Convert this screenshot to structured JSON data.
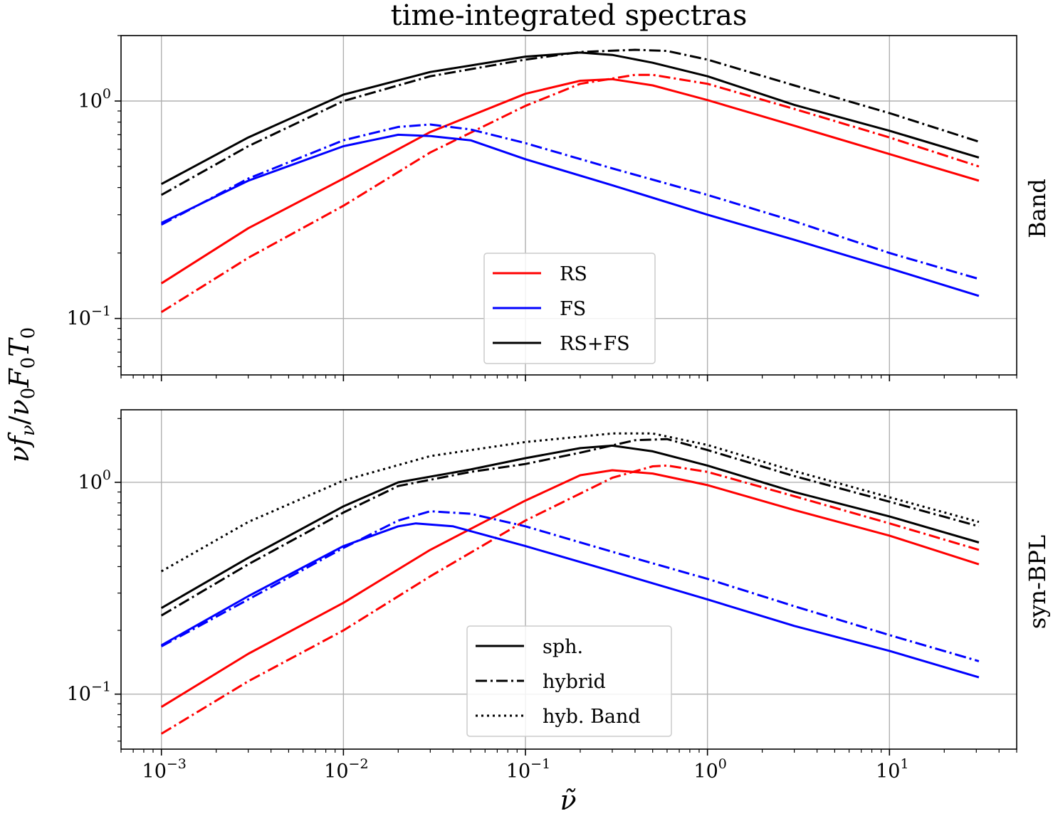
{
  "chart_data": {
    "type": "line",
    "title": "time-integrated spectras",
    "xlabel": "ν̃",
    "ylabel": "νf_ν/ν₀F₀T₀",
    "xscale": "log",
    "yscale": "log",
    "xlim": [
      0.0006,
      50
    ],
    "grid": true,
    "x_ticks": [
      {
        "base": "10",
        "exp": "−3",
        "value": 0.001
      },
      {
        "base": "10",
        "exp": "−2",
        "value": 0.01
      },
      {
        "base": "10",
        "exp": "−1",
        "value": 0.1
      },
      {
        "base": "10",
        "exp": "0",
        "value": 1
      },
      {
        "base": "10",
        "exp": "1",
        "value": 10
      }
    ],
    "panels": [
      {
        "label": "Band",
        "ylim": [
          0.055,
          2.0
        ],
        "y_ticks": [
          {
            "base": "10",
            "exp": "0",
            "value": 1
          },
          {
            "base": "10",
            "exp": "−1",
            "value": 0.1
          }
        ],
        "legend": {
          "placement": "lower-center",
          "entries": [
            {
              "label": "RS",
              "color": "#ff0000",
              "style": "solid"
            },
            {
              "label": "FS",
              "color": "#0000ff",
              "style": "solid"
            },
            {
              "label": "RS+FS",
              "color": "#000000",
              "style": "solid"
            }
          ]
        },
        "series": [
          {
            "name": "RS sph.",
            "color": "#ff0000",
            "style": "solid",
            "points": [
              [
                0.001,
                0.145
              ],
              [
                0.003,
                0.26
              ],
              [
                0.01,
                0.44
              ],
              [
                0.03,
                0.72
              ],
              [
                0.1,
                1.08
              ],
              [
                0.2,
                1.24
              ],
              [
                0.3,
                1.26
              ],
              [
                0.5,
                1.18
              ],
              [
                1,
                1.01
              ],
              [
                3,
                0.77
              ],
              [
                10,
                0.57
              ],
              [
                31,
                0.43
              ]
            ]
          },
          {
            "name": "RS hybrid",
            "color": "#ff0000",
            "style": "dashdot",
            "points": [
              [
                0.001,
                0.107
              ],
              [
                0.003,
                0.19
              ],
              [
                0.01,
                0.33
              ],
              [
                0.03,
                0.58
              ],
              [
                0.1,
                0.95
              ],
              [
                0.2,
                1.2
              ],
              [
                0.4,
                1.32
              ],
              [
                0.5,
                1.32
              ],
              [
                1,
                1.2
              ],
              [
                3,
                0.92
              ],
              [
                10,
                0.68
              ],
              [
                31,
                0.5
              ]
            ]
          },
          {
            "name": "FS sph.",
            "color": "#0000ff",
            "style": "solid",
            "points": [
              [
                0.001,
                0.275
              ],
              [
                0.003,
                0.43
              ],
              [
                0.01,
                0.62
              ],
              [
                0.02,
                0.7
              ],
              [
                0.03,
                0.69
              ],
              [
                0.05,
                0.66
              ],
              [
                0.1,
                0.54
              ],
              [
                0.3,
                0.41
              ],
              [
                1,
                0.3
              ],
              [
                3,
                0.23
              ],
              [
                10,
                0.17
              ],
              [
                31,
                0.127
              ]
            ]
          },
          {
            "name": "FS hybrid",
            "color": "#0000ff",
            "style": "dashdot",
            "points": [
              [
                0.001,
                0.27
              ],
              [
                0.003,
                0.44
              ],
              [
                0.01,
                0.66
              ],
              [
                0.02,
                0.76
              ],
              [
                0.03,
                0.78
              ],
              [
                0.05,
                0.74
              ],
              [
                0.1,
                0.64
              ],
              [
                0.3,
                0.49
              ],
              [
                1,
                0.37
              ],
              [
                3,
                0.28
              ],
              [
                10,
                0.2
              ],
              [
                31,
                0.152
              ]
            ]
          },
          {
            "name": "RS+FS sph.",
            "color": "#000000",
            "style": "solid",
            "points": [
              [
                0.001,
                0.415
              ],
              [
                0.003,
                0.68
              ],
              [
                0.01,
                1.07
              ],
              [
                0.03,
                1.36
              ],
              [
                0.1,
                1.6
              ],
              [
                0.2,
                1.67
              ],
              [
                0.3,
                1.63
              ],
              [
                0.5,
                1.5
              ],
              [
                1,
                1.3
              ],
              [
                3,
                0.96
              ],
              [
                10,
                0.73
              ],
              [
                31,
                0.55
              ]
            ]
          },
          {
            "name": "RS+FS hybrid",
            "color": "#000000",
            "style": "dashdot",
            "points": [
              [
                0.001,
                0.37
              ],
              [
                0.003,
                0.62
              ],
              [
                0.01,
                1.0
              ],
              [
                0.03,
                1.3
              ],
              [
                0.1,
                1.55
              ],
              [
                0.2,
                1.68
              ],
              [
                0.4,
                1.72
              ],
              [
                0.6,
                1.7
              ],
              [
                1,
                1.55
              ],
              [
                3,
                1.18
              ],
              [
                10,
                0.88
              ],
              [
                31,
                0.65
              ]
            ]
          }
        ]
      },
      {
        "label": "syn-BPL",
        "ylim": [
          0.055,
          2.2
        ],
        "y_ticks": [
          {
            "base": "10",
            "exp": "0",
            "value": 1
          },
          {
            "base": "10",
            "exp": "−1",
            "value": 0.1
          }
        ],
        "legend": {
          "placement": "lower-center",
          "entries": [
            {
              "label": "sph.",
              "color": "#000000",
              "style": "solid"
            },
            {
              "label": "hybrid",
              "color": "#000000",
              "style": "dashdot"
            },
            {
              "label": "hyb. Band",
              "color": "#000000",
              "style": "dotted"
            }
          ]
        },
        "series": [
          {
            "name": "RS sph.",
            "color": "#ff0000",
            "style": "solid",
            "points": [
              [
                0.001,
                0.087
              ],
              [
                0.003,
                0.155
              ],
              [
                0.01,
                0.27
              ],
              [
                0.03,
                0.48
              ],
              [
                0.1,
                0.82
              ],
              [
                0.2,
                1.08
              ],
              [
                0.3,
                1.14
              ],
              [
                0.5,
                1.1
              ],
              [
                1,
                0.97
              ],
              [
                3,
                0.74
              ],
              [
                10,
                0.56
              ],
              [
                31,
                0.41
              ]
            ]
          },
          {
            "name": "RS hybrid",
            "color": "#ff0000",
            "style": "dashdot",
            "points": [
              [
                0.001,
                0.065
              ],
              [
                0.003,
                0.115
              ],
              [
                0.01,
                0.2
              ],
              [
                0.03,
                0.36
              ],
              [
                0.1,
                0.66
              ],
              [
                0.3,
                1.05
              ],
              [
                0.5,
                1.19
              ],
              [
                0.6,
                1.2
              ],
              [
                1,
                1.12
              ],
              [
                3,
                0.86
              ],
              [
                10,
                0.64
              ],
              [
                31,
                0.48
              ]
            ]
          },
          {
            "name": "FS sph.",
            "color": "#0000ff",
            "style": "solid",
            "points": [
              [
                0.001,
                0.17
              ],
              [
                0.003,
                0.29
              ],
              [
                0.01,
                0.5
              ],
              [
                0.02,
                0.62
              ],
              [
                0.025,
                0.64
              ],
              [
                0.04,
                0.62
              ],
              [
                0.1,
                0.5
              ],
              [
                0.3,
                0.38
              ],
              [
                1,
                0.28
              ],
              [
                3,
                0.21
              ],
              [
                10,
                0.16
              ],
              [
                31,
                0.12
              ]
            ]
          },
          {
            "name": "FS hybrid",
            "color": "#0000ff",
            "style": "dashdot",
            "points": [
              [
                0.001,
                0.168
              ],
              [
                0.003,
                0.28
              ],
              [
                0.01,
                0.49
              ],
              [
                0.02,
                0.66
              ],
              [
                0.03,
                0.73
              ],
              [
                0.05,
                0.71
              ],
              [
                0.1,
                0.62
              ],
              [
                0.3,
                0.47
              ],
              [
                1,
                0.35
              ],
              [
                3,
                0.26
              ],
              [
                10,
                0.19
              ],
              [
                31,
                0.143
              ]
            ]
          },
          {
            "name": "RS+FS sph.",
            "color": "#000000",
            "style": "solid",
            "points": [
              [
                0.001,
                0.255
              ],
              [
                0.003,
                0.44
              ],
              [
                0.01,
                0.77
              ],
              [
                0.02,
                1.0
              ],
              [
                0.05,
                1.15
              ],
              [
                0.1,
                1.3
              ],
              [
                0.2,
                1.45
              ],
              [
                0.3,
                1.49
              ],
              [
                0.5,
                1.4
              ],
              [
                1,
                1.2
              ],
              [
                3,
                0.9
              ],
              [
                10,
                0.69
              ],
              [
                31,
                0.52
              ]
            ]
          },
          {
            "name": "RS+FS hybrid",
            "color": "#000000",
            "style": "dashdot",
            "points": [
              [
                0.001,
                0.235
              ],
              [
                0.003,
                0.41
              ],
              [
                0.01,
                0.72
              ],
              [
                0.02,
                0.96
              ],
              [
                0.05,
                1.12
              ],
              [
                0.1,
                1.22
              ],
              [
                0.2,
                1.38
              ],
              [
                0.4,
                1.58
              ],
              [
                0.6,
                1.6
              ],
              [
                1,
                1.42
              ],
              [
                3,
                1.07
              ],
              [
                10,
                0.81
              ],
              [
                31,
                0.62
              ]
            ]
          },
          {
            "name": "RS+FS hyb. Band",
            "color": "#000000",
            "style": "dotted",
            "points": [
              [
                0.001,
                0.38
              ],
              [
                0.003,
                0.65
              ],
              [
                0.01,
                1.02
              ],
              [
                0.03,
                1.33
              ],
              [
                0.1,
                1.55
              ],
              [
                0.3,
                1.7
              ],
              [
                0.5,
                1.7
              ],
              [
                1,
                1.5
              ],
              [
                3,
                1.13
              ],
              [
                10,
                0.85
              ],
              [
                31,
                0.65
              ]
            ]
          }
        ]
      }
    ]
  }
}
